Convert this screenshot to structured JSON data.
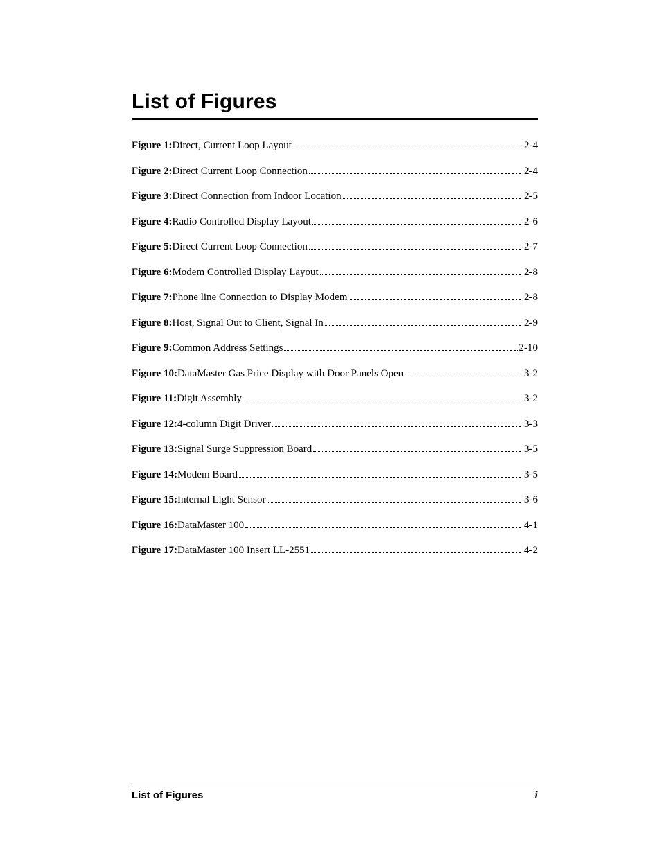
{
  "title": "List of Figures",
  "entries": [
    {
      "label": "Figure 1:",
      "desc": " Direct, Current Loop Layout",
      "page": "2-4"
    },
    {
      "label": "Figure 2:",
      "desc": " Direct Current Loop Connection",
      "page": "2-4"
    },
    {
      "label": "Figure 3:",
      "desc": " Direct Connection from Indoor Location",
      "page": "2-5"
    },
    {
      "label": "Figure 4:",
      "desc": " Radio Controlled Display Layout",
      "page": "2-6"
    },
    {
      "label": "Figure 5:",
      "desc": " Direct Current Loop Connection",
      "page": "2-7"
    },
    {
      "label": "Figure 6:",
      "desc": "  Modem Controlled Display Layout",
      "page": "2-8"
    },
    {
      "label": "Figure 7:",
      "desc": " Phone line Connection to Display Modem",
      "page": "2-8"
    },
    {
      "label": "Figure 8:",
      "desc": " Host, Signal Out to Client, Signal In",
      "page": "2-9"
    },
    {
      "label": "Figure 9:",
      "desc": " Common Address Settings",
      "page": "2-10"
    },
    {
      "label": "Figure 10:",
      "desc": " DataMaster Gas Price Display with Door Panels Open ",
      "page": "3-2"
    },
    {
      "label": "Figure 11:",
      "desc": " Digit Assembly",
      "page": "3-2"
    },
    {
      "label": "Figure 12:",
      "desc": " 4-column Digit Driver",
      "page": "3-3"
    },
    {
      "label": "Figure 13:",
      "desc": " Signal Surge Suppression Board",
      "page": "3-5"
    },
    {
      "label": "Figure 14:",
      "desc": " Modem Board",
      "page": "3-5"
    },
    {
      "label": "Figure 15:",
      "desc": " Internal Light Sensor",
      "page": "3-6"
    },
    {
      "label": "Figure 16:",
      "desc": " DataMaster 100 ",
      "page": "4-1"
    },
    {
      "label": "Figure 17:",
      "desc": " DataMaster 100 Insert LL-2551 ",
      "page": "4-2"
    }
  ],
  "footer": {
    "left": "List of Figures",
    "right": "i"
  },
  "colors": {
    "text": "#000000",
    "background": "#ffffff",
    "rule": "#000000"
  },
  "typography": {
    "title_font": "Arial",
    "title_size_pt": 22,
    "body_font": "Times New Roman",
    "body_size_pt": 11,
    "footer_font": "Arial",
    "footer_size_pt": 11
  }
}
